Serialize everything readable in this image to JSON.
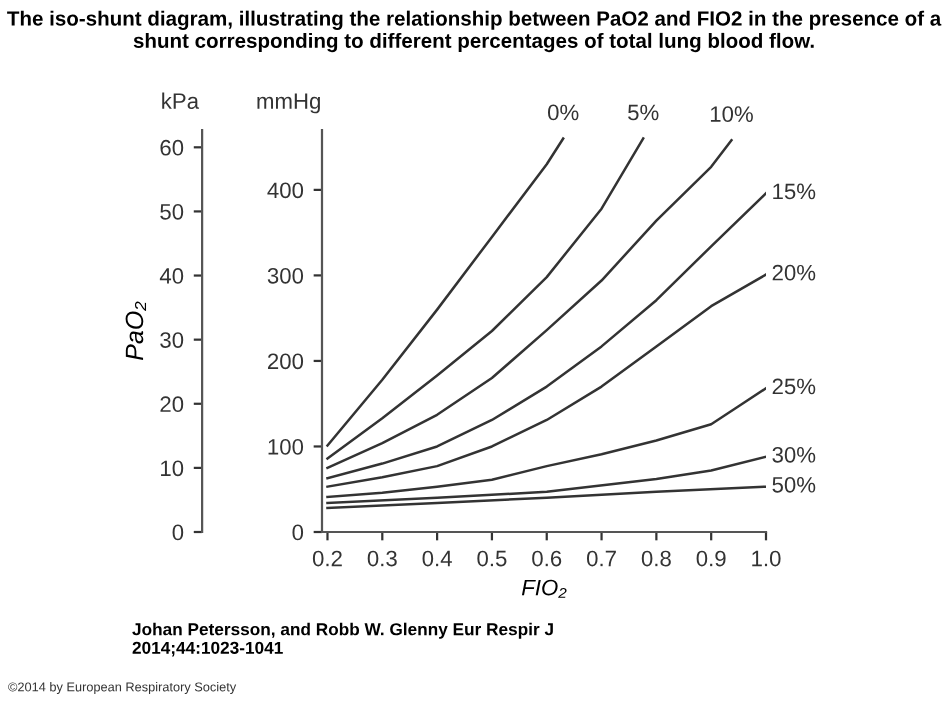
{
  "chart_data": {
    "type": "line",
    "title": "The iso-shunt diagram, illustrating the relationship between PaO2 and FIO2 in the presence of a shunt corresponding to different percentages of total lung blood flow.",
    "xlabel": "FIO₂",
    "y2label": "PaO₂",
    "annotations": [
      "mmHg",
      "kPa",
      "Johan Petersson, and Robb W. Glenny Eur Respir J\n2014;44:1023-1041",
      "©2014 by European Respiratory Society"
    ],
    "xlim": [
      0.19,
      1.0
    ],
    "xticks": [
      0.2,
      0.3,
      0.4,
      0.5,
      0.6,
      0.7,
      0.8,
      0.9,
      {
        "value": 1.0,
        "label": "1.0"
      }
    ],
    "ylim": [
      0,
      470
    ],
    "yticks": [
      0,
      100,
      200,
      300,
      400
    ],
    "y2lim": [
      0,
      62.7
    ],
    "y2ticks": [
      0,
      10,
      20,
      30,
      40,
      50,
      60
    ],
    "grid": false,
    "legend": false,
    "marker": "none",
    "line_style": "solid",
    "series": [
      {
        "name": "0%",
        "color": "#333333",
        "x": [
          0.2,
          0.3,
          0.4,
          0.5,
          0.6,
          0.63
        ],
        "values": [
          101,
          178,
          260,
          345,
          430,
          460
        ]
      },
      {
        "name": "5%",
        "color": "#333333",
        "x": [
          0.2,
          0.3,
          0.4,
          0.5,
          0.6,
          0.7,
          0.776
        ],
        "values": [
          86,
          133,
          183,
          235,
          298,
          378,
          460
        ]
      },
      {
        "name": "10%",
        "color": "#333333",
        "x": [
          0.2,
          0.3,
          0.4,
          0.5,
          0.6,
          0.7,
          0.8,
          0.9,
          0.937
        ],
        "values": [
          75,
          104,
          137,
          180,
          236,
          294,
          364,
          427,
          458
        ]
      },
      {
        "name": "15%",
        "color": "#333333",
        "x": [
          0.2,
          0.3,
          0.4,
          0.5,
          0.6,
          0.7,
          0.8,
          0.9,
          1.0
        ],
        "values": [
          63,
          80,
          100,
          131,
          170,
          217,
          271,
          334,
          396
        ]
      },
      {
        "name": "20%",
        "color": "#333333",
        "x": [
          0.2,
          0.3,
          0.4,
          0.5,
          0.6,
          0.7,
          0.8,
          0.9,
          1.0
        ],
        "values": [
          53,
          64,
          77,
          100,
          131,
          170,
          217,
          264,
          301
        ]
      },
      {
        "name": "25%",
        "color": "#333333",
        "x": [
          0.2,
          0.3,
          0.4,
          0.5,
          0.6,
          0.7,
          0.8,
          0.9,
          0.95,
          1.0
        ],
        "values": [
          41,
          46,
          53,
          61,
          77,
          91,
          107,
          126,
          147,
          168
        ]
      },
      {
        "name": "30%",
        "color": "#333333",
        "x": [
          0.2,
          0.4,
          0.6,
          0.8,
          0.9,
          1.0
        ],
        "values": [
          34,
          40,
          47,
          62,
          72,
          88
        ]
      },
      {
        "name": "50%",
        "color": "#333333",
        "x": [
          0.2,
          0.4,
          0.6,
          0.8,
          1.0
        ],
        "values": [
          28,
          34,
          40,
          47,
          53
        ]
      }
    ]
  }
}
